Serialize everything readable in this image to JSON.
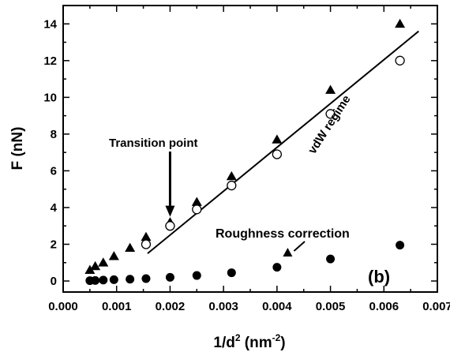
{
  "chart_data": {
    "type": "scatter",
    "title": "",
    "xlabel": "1/d",
    "xlabel_sup": "2",
    "xlabel_unit_open": " (nm",
    "xlabel_unit_sup": "-2",
    "xlabel_unit_close": ")",
    "ylabel": "F (nN)",
    "xlim": [
      0.0,
      0.007
    ],
    "ylim": [
      -0.6,
      15.0
    ],
    "xticks": [
      0.0,
      0.001,
      0.002,
      0.003,
      0.004,
      0.005,
      0.006,
      0.007
    ],
    "xtick_labels": [
      "0.000",
      "0.001",
      "0.002",
      "0.003",
      "0.004",
      "0.005",
      "0.006",
      "0.007"
    ],
    "yticks": [
      0,
      2,
      4,
      6,
      8,
      10,
      12,
      14
    ],
    "ytick_labels": [
      "0",
      "2",
      "4",
      "6",
      "8",
      "10",
      "12",
      "14"
    ],
    "grid": false,
    "series": [
      {
        "marker": "triangle-filled",
        "color": "#000000",
        "x": [
          0.0005,
          0.0006,
          0.00075,
          0.00095,
          0.00125,
          0.00155,
          0.002,
          0.0025,
          0.00315,
          0.004,
          0.005,
          0.0063
        ],
        "y": [
          0.6,
          0.8,
          1.0,
          1.35,
          1.8,
          2.4,
          3.2,
          4.3,
          5.7,
          7.7,
          10.4,
          14.0
        ]
      },
      {
        "marker": "circle-open",
        "color": "#000000",
        "x": [
          0.00155,
          0.002,
          0.0025,
          0.00315,
          0.004,
          0.005,
          0.0063
        ],
        "y": [
          2.0,
          3.0,
          3.9,
          5.2,
          6.9,
          9.1,
          12.0
        ]
      },
      {
        "marker": "circle-filled",
        "color": "#000000",
        "x": [
          0.0005,
          0.0006,
          0.00075,
          0.00095,
          0.00125,
          0.00155,
          0.002,
          0.0025,
          0.00315,
          0.004,
          0.005,
          0.0063
        ],
        "y": [
          0.02,
          0.03,
          0.05,
          0.07,
          0.1,
          0.13,
          0.2,
          0.3,
          0.45,
          0.75,
          1.2,
          1.95
        ]
      }
    ],
    "fit_line": {
      "x": [
        0.00158,
        0.00665
      ],
      "y": [
        1.5,
        13.6
      ]
    },
    "annotations": {
      "transition": {
        "text": "Transition point",
        "arrow_tip": [
          0.002,
          3.5
        ]
      },
      "vdw": {
        "text": "vdW  regime"
      },
      "roughness": {
        "text": "Roughness correction",
        "arrow_tip": [
          0.0042,
          1.55
        ]
      },
      "panel": {
        "text": "(b)"
      }
    }
  }
}
